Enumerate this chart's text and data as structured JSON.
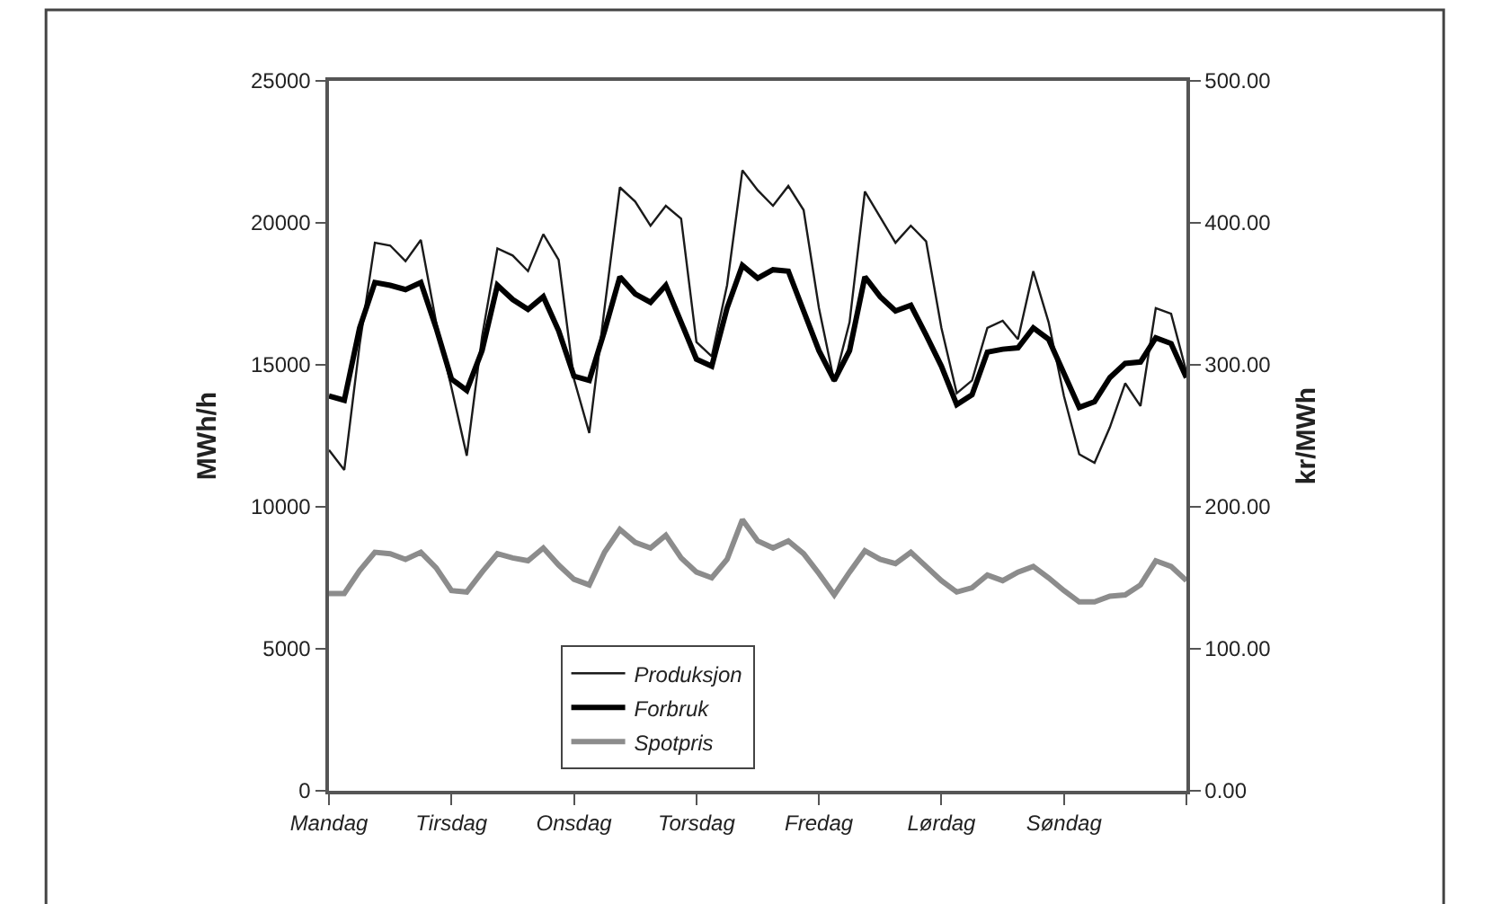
{
  "chart_data": {
    "type": "line",
    "ylabel": "MWh/h",
    "y2label": "kr/MWh",
    "categories": [
      "Mandag",
      null,
      null,
      null,
      null,
      null,
      null,
      null,
      "Tirsdag",
      null,
      null,
      null,
      null,
      null,
      null,
      null,
      "Onsdag",
      null,
      null,
      null,
      null,
      null,
      null,
      null,
      "Torsdag",
      null,
      null,
      null,
      null,
      null,
      null,
      null,
      "Fredag",
      null,
      null,
      null,
      null,
      null,
      null,
      null,
      "Lørdag",
      null,
      null,
      null,
      null,
      null,
      null,
      null,
      "Søndag",
      null,
      null,
      null,
      null,
      null,
      null,
      null,
      null
    ],
    "ylim": [
      0,
      25000
    ],
    "yticks": [
      0,
      5000,
      10000,
      15000,
      20000,
      25000
    ],
    "y2lim": [
      0,
      500
    ],
    "y2ticks": [
      {
        "value": 0,
        "label": "0.00"
      },
      {
        "value": 100,
        "label": "100.00"
      },
      {
        "value": 200,
        "label": "200.00"
      },
      {
        "value": 300,
        "label": "300.00"
      },
      {
        "value": 400,
        "label": "400.00"
      },
      {
        "value": 500,
        "label": "500.00"
      }
    ],
    "legend": "bottom",
    "marker": "none",
    "series": [
      {
        "name": "Produksjon",
        "color": "#1a1a1a",
        "values": [
          12000,
          11300,
          15700,
          19300,
          19200,
          18650,
          19400,
          16500,
          14200,
          11800,
          16000,
          19100,
          18850,
          18300,
          19600,
          18700,
          14500,
          12600,
          17000,
          21250,
          20750,
          19900,
          20600,
          20150,
          15800,
          15300,
          17800,
          21850,
          21150,
          20600,
          21300,
          20450,
          17000,
          14400,
          16500,
          21100,
          20200,
          19300,
          19900,
          19350,
          16300,
          14000,
          14450,
          16300,
          16550,
          15900,
          18300,
          16500,
          13900,
          11850,
          11550,
          12800,
          14350,
          13550,
          17000,
          16800,
          14750
        ]
      },
      {
        "name": "Forbruk",
        "color": "#000000",
        "values": [
          13900,
          13750,
          16300,
          17900,
          17800,
          17650,
          17900,
          16300,
          14500,
          14100,
          15500,
          17800,
          17300,
          16950,
          17400,
          16200,
          14600,
          14450,
          16200,
          18100,
          17500,
          17200,
          17800,
          16500,
          15200,
          14950,
          17000,
          18500,
          18050,
          18350,
          18300,
          16900,
          15500,
          14450,
          15500,
          18100,
          17400,
          16900,
          17100,
          16050,
          14950,
          13600,
          13950,
          15450,
          15550,
          15600,
          16300,
          15900,
          14700,
          13500,
          13700,
          14550,
          15050,
          15100,
          15950,
          15750,
          14550
        ]
      },
      {
        "name": "Spotpris",
        "color": "#8c8c8c",
        "axis": "y2",
        "values": [
          139,
          139,
          155,
          168,
          167,
          163,
          168,
          157,
          141,
          140,
          154,
          167,
          164,
          162,
          171,
          159,
          149,
          145,
          168,
          184,
          175,
          171,
          180,
          164,
          154,
          150,
          163,
          191,
          176,
          171,
          176,
          167,
          153,
          138,
          154,
          169,
          163,
          160,
          168,
          158,
          148,
          140,
          143,
          152,
          148,
          154,
          158,
          150,
          141,
          133,
          133,
          137,
          138,
          145,
          162,
          158,
          148
        ]
      }
    ]
  }
}
